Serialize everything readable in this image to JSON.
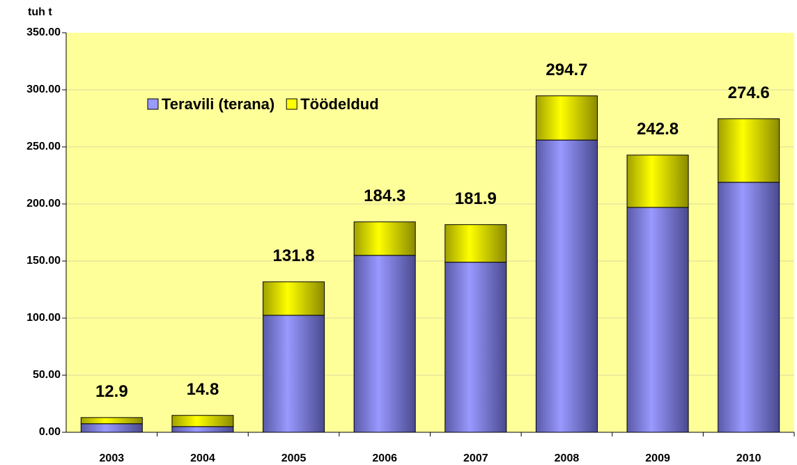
{
  "chart_data": {
    "type": "stacked_bar",
    "y_axis_label": "tuh t",
    "categories": [
      "2003",
      "2004",
      "2005",
      "2006",
      "2007",
      "2008",
      "2009",
      "2010"
    ],
    "series": [
      {
        "name": "Teravili (terana)",
        "color": "#9999ff",
        "values": [
          7.5,
          5,
          102.5,
          155,
          149,
          256,
          197,
          219
        ]
      },
      {
        "name": "Töödeldud",
        "color": "#ffff00",
        "values": [
          5.4,
          9.8,
          29.3,
          29.3,
          32.9,
          38.7,
          45.8,
          55.6
        ]
      }
    ],
    "totals": [
      12.9,
      14.8,
      131.8,
      184.3,
      181.9,
      294.7,
      242.8,
      274.6
    ],
    "ylim": [
      0,
      350
    ],
    "yticks": [
      {
        "value": 0,
        "label": "0.00"
      },
      {
        "value": 50,
        "label": "50.00"
      },
      {
        "value": 100,
        "label": "100.00"
      },
      {
        "value": 150,
        "label": "150.00"
      },
      {
        "value": 200,
        "label": "200.00"
      },
      {
        "value": 250,
        "label": "250.00"
      },
      {
        "value": 300,
        "label": "300.00"
      },
      {
        "value": 350,
        "label": "350.00"
      }
    ],
    "plot_background": "#ffff99",
    "grid": true
  }
}
